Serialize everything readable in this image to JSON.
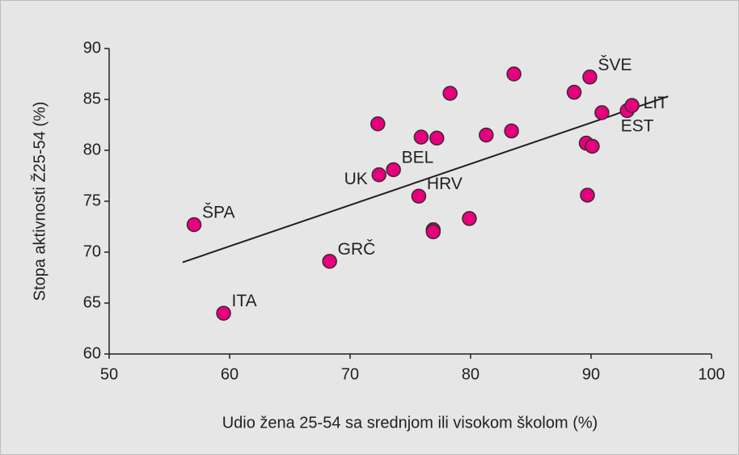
{
  "chart_data": {
    "type": "scatter",
    "x_label": "Udio žena 25-54 sa srednjom ili visokom školom (%)",
    "y_label": "Stopa aktivnosti Ž25-54 (%)",
    "xlim": [
      50,
      100
    ],
    "xticks": [
      50,
      60,
      70,
      80,
      90,
      100
    ],
    "ylim": [
      60,
      90
    ],
    "yticks": [
      60,
      65,
      70,
      75,
      80,
      85,
      90
    ],
    "grid": false,
    "color": "#e6007e",
    "x": [
      57.05,
      59.5,
      68.3,
      72.4,
      73.6,
      72.3,
      75.9,
      77.2,
      78.3,
      75.7,
      76.9,
      76.9,
      79.9,
      81.3,
      83.4,
      83.6,
      88.6,
      89.9,
      89.6,
      90.1,
      89.7,
      90.9,
      93.0,
      93.4
    ],
    "y": [
      72.7,
      64.0,
      69.1,
      77.6,
      78.1,
      82.6,
      81.3,
      81.2,
      85.6,
      75.5,
      72.2,
      72.0,
      73.3,
      81.5,
      81.9,
      87.5,
      85.7,
      87.2,
      80.7,
      80.4,
      75.6,
      83.7,
      83.9,
      84.4
    ],
    "labels": [
      "ŠPA",
      "ITA",
      "GRČ",
      "UK",
      "BEL",
      null,
      null,
      null,
      null,
      "HRV",
      null,
      null,
      null,
      null,
      null,
      null,
      null,
      "ŠVE",
      null,
      null,
      null,
      null,
      "EST",
      "LIT"
    ],
    "trendline": {
      "x": [
        56.1,
        96.4
      ],
      "y": [
        69.0,
        85.3
      ]
    }
  }
}
